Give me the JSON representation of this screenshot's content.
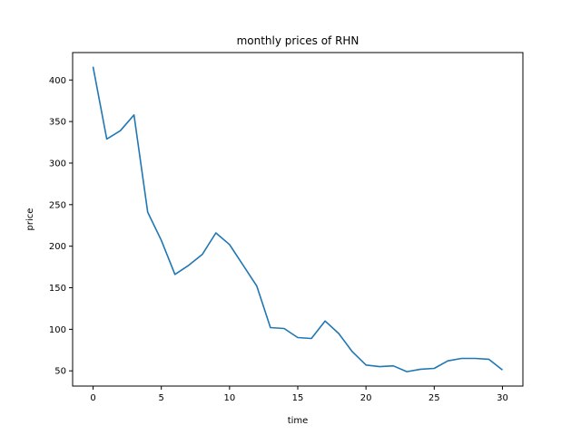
{
  "chart_data": {
    "type": "line",
    "title": "monthly prices of RHN",
    "xlabel": "time",
    "ylabel": "price",
    "xlim": [
      -1.5,
      31.5
    ],
    "ylim": [
      31.7,
      433.0
    ],
    "xticks": [
      0,
      5,
      10,
      15,
      20,
      25,
      30
    ],
    "yticks": [
      50,
      100,
      150,
      200,
      250,
      300,
      350,
      400
    ],
    "grid": false,
    "series": [
      {
        "color": "#1f77b4",
        "x": [
          0,
          1,
          2,
          3,
          4,
          5,
          6,
          7,
          8,
          9,
          10,
          11,
          12,
          13,
          14,
          15,
          16,
          17,
          18,
          19,
          20,
          21,
          22,
          23,
          24,
          25,
          26,
          27,
          28,
          29,
          30
        ],
        "y": [
          416,
          329,
          339,
          358,
          241,
          207,
          166,
          177,
          190,
          216,
          202,
          177,
          152,
          102,
          101,
          90,
          89,
          110,
          95,
          73,
          57,
          55,
          56,
          49,
          52,
          53,
          62,
          65,
          65,
          64,
          51
        ]
      }
    ]
  }
}
